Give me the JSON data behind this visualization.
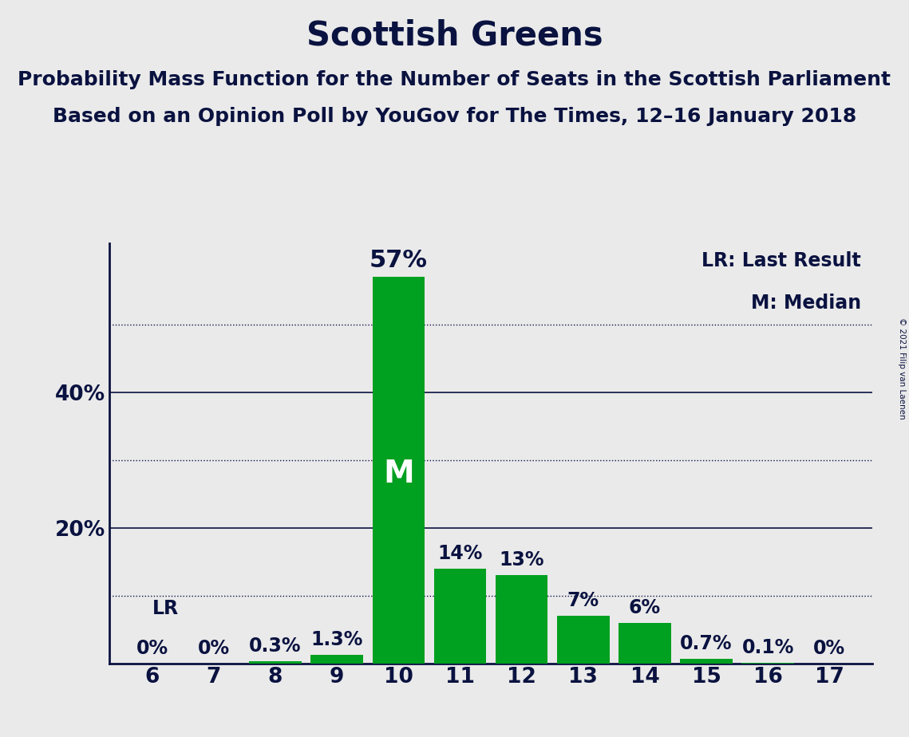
{
  "title": "Scottish Greens",
  "subtitle1": "Probability Mass Function for the Number of Seats in the Scottish Parliament",
  "subtitle2": "Based on an Opinion Poll by YouGov for The Times, 12–16 January 2018",
  "copyright": "© 2021 Filip van Laenen",
  "categories": [
    6,
    7,
    8,
    9,
    10,
    11,
    12,
    13,
    14,
    15,
    16,
    17
  ],
  "values": [
    0.0,
    0.0,
    0.3,
    1.3,
    57.0,
    14.0,
    13.0,
    7.0,
    6.0,
    0.7,
    0.1,
    0.0
  ],
  "bar_labels": [
    "0%",
    "0%",
    "0.3%",
    "1.3%",
    "57%",
    "14%",
    "13%",
    "7%",
    "6%",
    "0.7%",
    "0.1%",
    "0%"
  ],
  "bar_color": "#00A020",
  "background_color": "#EAEAEA",
  "text_color": "#0A1240",
  "median_seat": 10,
  "lr_seat": 6,
  "lr_label": "LR",
  "median_label": "M",
  "dotted_yticks": [
    10,
    30,
    50
  ],
  "solid_yticks": [
    20,
    40
  ],
  "ylim": [
    0,
    62
  ],
  "legend_lr": "LR: Last Result",
  "legend_m": "M: Median",
  "title_fontsize": 30,
  "subtitle_fontsize": 18,
  "bar_label_fontsize": 17,
  "axis_label_fontsize": 19,
  "legend_fontsize": 17,
  "median_fontsize": 28,
  "large_bar_label_fontsize": 22,
  "lr_fontsize": 17
}
